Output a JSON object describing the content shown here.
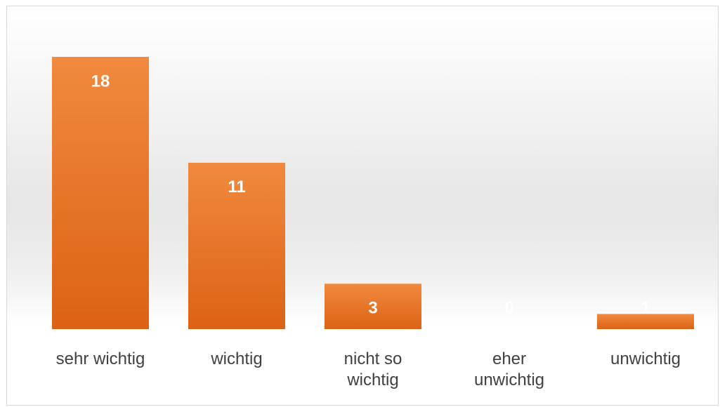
{
  "chart_data": {
    "type": "bar",
    "categories": [
      "sehr wichtig",
      "wichtig",
      "nicht so wichtig",
      "eher unwichtig",
      "unwichtig"
    ],
    "values": [
      18,
      11,
      3,
      0,
      1
    ],
    "color": "#e8702a"
  }
}
